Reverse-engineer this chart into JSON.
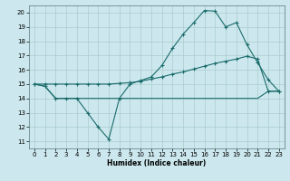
{
  "xlabel": "Humidex (Indice chaleur)",
  "bg_color": "#cce8ee",
  "grid_color": "#aacccc",
  "line_color": "#1a6b6b",
  "xlim": [
    -0.5,
    23.5
  ],
  "ylim": [
    10.5,
    20.5
  ],
  "xticks": [
    0,
    1,
    2,
    3,
    4,
    5,
    6,
    7,
    8,
    9,
    10,
    11,
    12,
    13,
    14,
    15,
    16,
    17,
    18,
    19,
    20,
    21,
    22,
    23
  ],
  "yticks": [
    11,
    12,
    13,
    14,
    15,
    16,
    17,
    18,
    19,
    20
  ],
  "line1_x": [
    0,
    1,
    2,
    3,
    4,
    5,
    6,
    7,
    8,
    9,
    10,
    11,
    12,
    13,
    14,
    15,
    16,
    17,
    18,
    19,
    20,
    21,
    22,
    23
  ],
  "line1_y": [
    15,
    14.85,
    14.0,
    14.0,
    14.0,
    13.0,
    12.0,
    11.15,
    14.0,
    15.0,
    15.25,
    15.5,
    16.3,
    17.5,
    18.5,
    19.3,
    20.15,
    20.1,
    19.0,
    19.3,
    17.75,
    16.5,
    15.3,
    14.5
  ],
  "line2_x": [
    0,
    1,
    2,
    3,
    4,
    5,
    6,
    7,
    8,
    9,
    10,
    11,
    12,
    13,
    14,
    15,
    16,
    17,
    18,
    19,
    20,
    21,
    22,
    23
  ],
  "line2_y": [
    15,
    15,
    15,
    15,
    15,
    15,
    15,
    15,
    15.05,
    15.1,
    15.2,
    15.35,
    15.5,
    15.7,
    15.85,
    16.05,
    16.25,
    16.45,
    16.6,
    16.75,
    16.95,
    16.75,
    14.5,
    14.5
  ],
  "line3_x": [
    0,
    1,
    2,
    3,
    4,
    5,
    6,
    7,
    8,
    9,
    10,
    11,
    12,
    13,
    14,
    15,
    16,
    17,
    18,
    19,
    20,
    21,
    22,
    23
  ],
  "line3_y": [
    15,
    14.85,
    14.0,
    14.0,
    14.0,
    14.0,
    14.0,
    14.0,
    14.0,
    14.0,
    14.0,
    14.0,
    14.0,
    14.0,
    14.0,
    14.0,
    14.0,
    14.0,
    14.0,
    14.0,
    14.0,
    14.0,
    14.5,
    14.5
  ]
}
